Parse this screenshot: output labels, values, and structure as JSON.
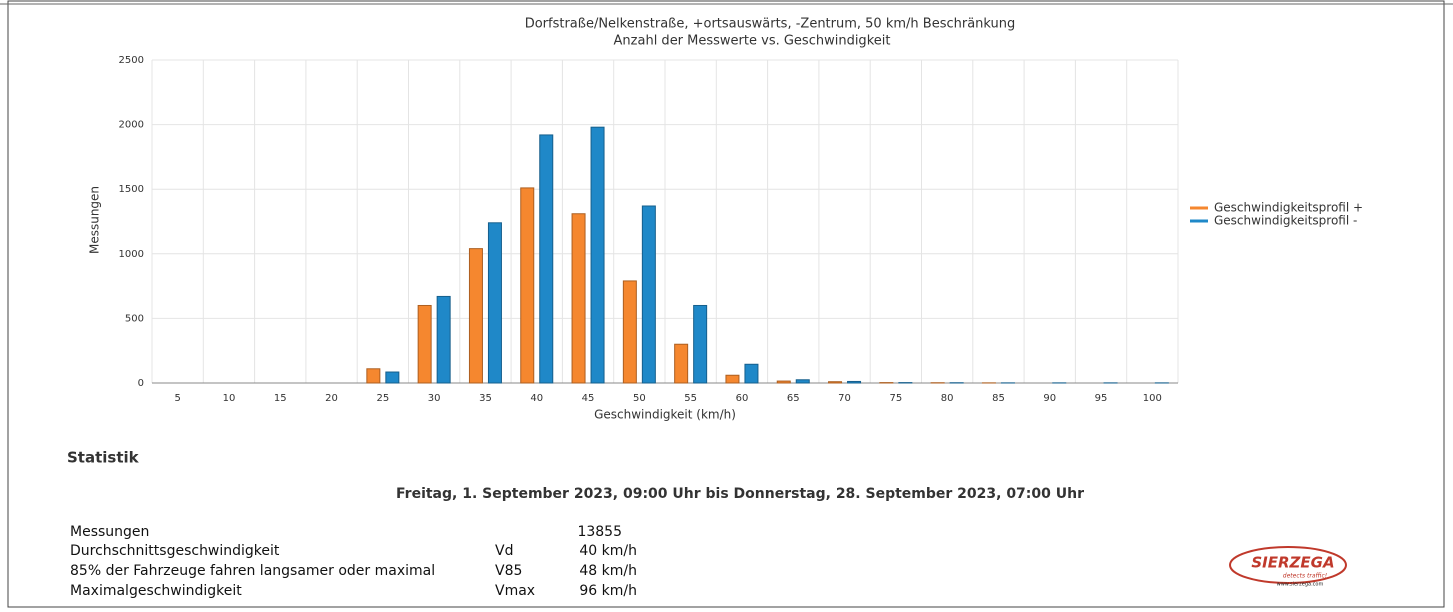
{
  "chart_data": {
    "type": "bar",
    "title": "Dorfstraße/Nelkenstraße, +ortsauswärts, -Zentrum, 50 km/h Beschränkung",
    "subtitle": "Anzahl der Messwerte vs. Geschwindigkeit",
    "x_label": "Geschwindigkeit (km/h)",
    "y_label": "Messungen",
    "categories": [
      5,
      10,
      15,
      20,
      25,
      30,
      35,
      40,
      45,
      50,
      55,
      60,
      65,
      70,
      75,
      80,
      85,
      90,
      95,
      100
    ],
    "series": [
      {
        "name": "Geschwindigkeitsprofil +",
        "color": "#f5872f",
        "values": [
          0,
          0,
          0,
          0,
          110,
          600,
          1040,
          1510,
          1310,
          790,
          300,
          60,
          15,
          10,
          3,
          2,
          1,
          0,
          0,
          0
        ]
      },
      {
        "name": "Geschwindigkeitsprofil -",
        "color": "#1f88c8",
        "values": [
          0,
          0,
          0,
          0,
          85,
          670,
          1240,
          1920,
          1980,
          1370,
          600,
          145,
          25,
          12,
          3,
          2,
          1,
          1,
          1,
          1
        ]
      }
    ],
    "ylim": [
      0,
      2500
    ],
    "yticks": [
      0,
      500,
      1000,
      1500,
      2000,
      2500
    ],
    "grid": true,
    "legend": "right"
  },
  "statistics": {
    "heading": "Statistik",
    "period": "Freitag, 1. September 2023, 09:00 Uhr bis Donnerstag, 28. September 2023, 07:00 Uhr",
    "rows": [
      {
        "label": "Messungen",
        "symbol": "",
        "value": 13855
      },
      {
        "label": "Durchschnittsgeschwindigkeit",
        "symbol": "Vd",
        "value": "40 km/h"
      },
      {
        "label": "85% der Fahrzeuge fahren langsamer oder maximal",
        "symbol": "V85",
        "value": "48 km/h"
      },
      {
        "label": "Maximalgeschwindigkeit",
        "symbol": "Vmax",
        "value": "96 km/h"
      }
    ]
  },
  "logo": {
    "name": "SIERZEGA",
    "slogan": "detects traffic!",
    "url": "www.sierzega.com"
  }
}
